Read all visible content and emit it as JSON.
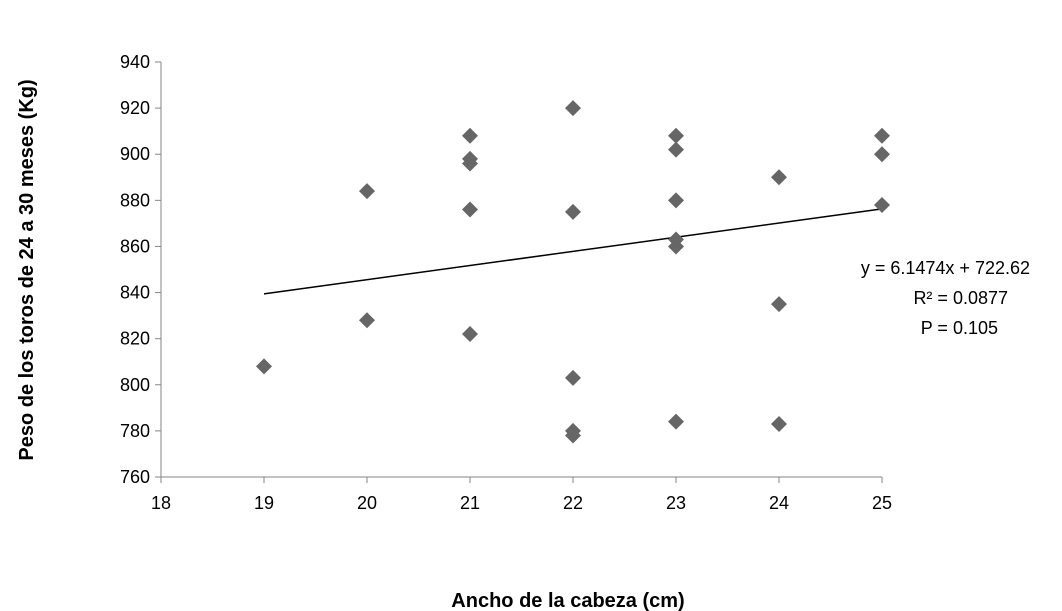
{
  "chart_data": {
    "type": "scatter",
    "xlabel": "Ancho de la cabeza (cm)",
    "ylabel": "Peso de los toros de 24 a 30 meses (Kg)",
    "xlim": [
      18,
      25
    ],
    "ylim": [
      760,
      940
    ],
    "x_ticks": [
      18,
      19,
      20,
      21,
      22,
      23,
      24,
      25
    ],
    "y_ticks": [
      760,
      780,
      800,
      820,
      840,
      860,
      880,
      900,
      920,
      940
    ],
    "grid": false,
    "legend": "none",
    "marker": "diamond",
    "marker_color": "#666666",
    "points": [
      {
        "x": 19,
        "y": 808
      },
      {
        "x": 20,
        "y": 884
      },
      {
        "x": 20,
        "y": 828
      },
      {
        "x": 21,
        "y": 908
      },
      {
        "x": 21,
        "y": 898
      },
      {
        "x": 21,
        "y": 896
      },
      {
        "x": 21,
        "y": 876
      },
      {
        "x": 21,
        "y": 822
      },
      {
        "x": 22,
        "y": 920
      },
      {
        "x": 22,
        "y": 875
      },
      {
        "x": 22,
        "y": 803
      },
      {
        "x": 22,
        "y": 780
      },
      {
        "x": 22,
        "y": 778
      },
      {
        "x": 23,
        "y": 908
      },
      {
        "x": 23,
        "y": 902
      },
      {
        "x": 23,
        "y": 880
      },
      {
        "x": 23,
        "y": 863
      },
      {
        "x": 23,
        "y": 860
      },
      {
        "x": 23,
        "y": 784
      },
      {
        "x": 24,
        "y": 890
      },
      {
        "x": 24,
        "y": 835
      },
      {
        "x": 24,
        "y": 783
      },
      {
        "x": 25,
        "y": 908
      },
      {
        "x": 25,
        "y": 900
      },
      {
        "x": 25,
        "y": 878
      }
    ],
    "trendline": {
      "type": "linear",
      "slope": 6.1474,
      "intercept": 722.62,
      "x_range": [
        19,
        25
      ],
      "color": "#000000"
    },
    "annotations": [
      "y = 6.1474x + 722.62",
      "R² = 0.0877",
      "P = 0.105"
    ]
  }
}
